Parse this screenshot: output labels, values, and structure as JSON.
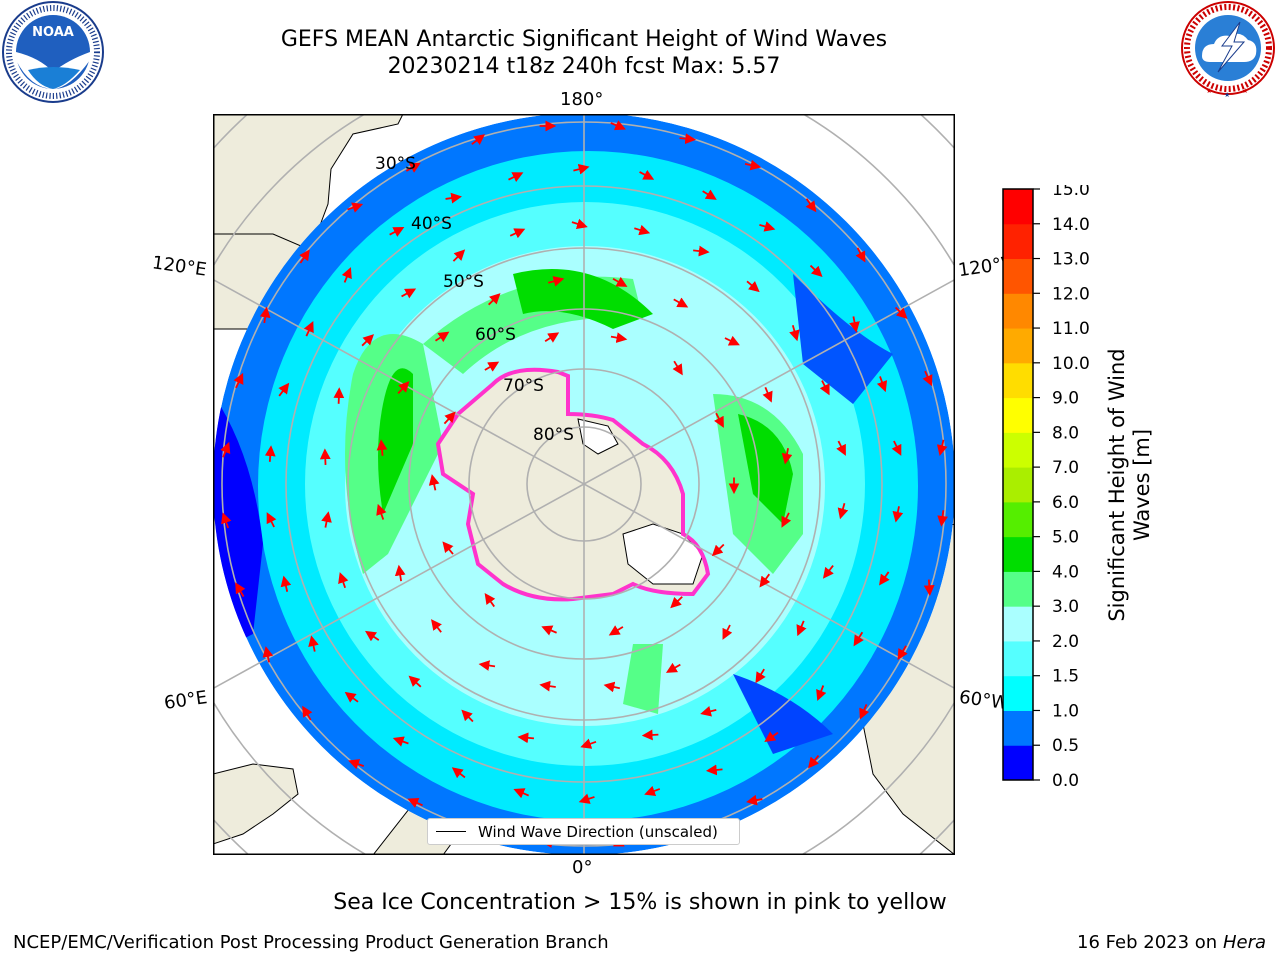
{
  "title_line1": "GEFS MEAN Antarctic Significant Height of Wind Waves",
  "title_line2": "20230214 t18z 240h fcst   Max: 5.57",
  "caption": "Sea Ice Concentration > 15% is shown in pink to yellow",
  "footer_left": "NCEP/EMC/Verification Post Processing Product Generation Branch",
  "footer_right_date": "16 Feb 2023 on",
  "footer_right_host": "Hera",
  "legend_label": "Wind Wave Direction (unscaled)",
  "logos": {
    "noaa": {
      "center_text": "NOAA",
      "ring_text": "NATIONAL OCEANIC AND ATMOSPHERIC ADMINISTRATION · U.S. DEPARTMENT OF COMMERCE"
    },
    "nws": {
      "ring_text": "NATIONAL WEATHER SERVICE"
    }
  },
  "map": {
    "projection": "south-polar-stereographic",
    "longitude_labels": {
      "top": "180°",
      "bottom": "0°",
      "upper_left": "120°E",
      "upper_right": "120°W",
      "lower_left": "60°E",
      "lower_right": "60°W"
    },
    "latitude_labels": [
      "30°S",
      "40°S",
      "50°S",
      "60°S",
      "70°S",
      "80°S"
    ],
    "colors": {
      "land": "#eeecdc",
      "ice_edge": "#ff33cc",
      "arrow": "#ff0000",
      "grid": "#b0b0b0",
      "ocean_default": "#0077ff"
    }
  },
  "colorbar": {
    "label_line1": "Significant Height of Wind",
    "label_line2": "Waves [m]",
    "ticks": [
      "0.0",
      "0.5",
      "1.0",
      "1.5",
      "2.0",
      "3.0",
      "4.0",
      "5.0",
      "6.0",
      "7.0",
      "8.0",
      "9.0",
      "10.0",
      "11.0",
      "12.0",
      "13.0",
      "14.0",
      "15.0"
    ],
    "colors": [
      "#0000ff",
      "#0077ff",
      "#00ffff",
      "#55ffff",
      "#aaffff",
      "#55ff88",
      "#00dd00",
      "#55ee00",
      "#aaee00",
      "#ccff00",
      "#ffff00",
      "#ffdd00",
      "#ffaa00",
      "#ff8800",
      "#ff5500",
      "#ff2200",
      "#ff0000"
    ]
  }
}
